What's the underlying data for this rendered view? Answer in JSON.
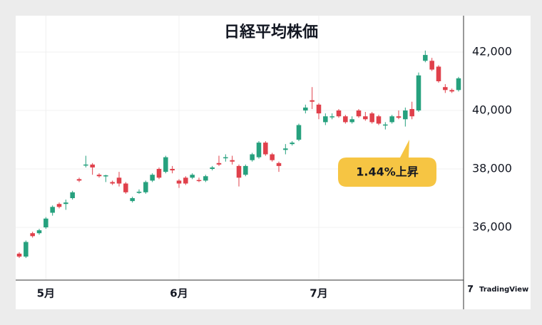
{
  "chart_data": {
    "type": "candlestick",
    "title": "日経平均株価",
    "annotation": "1.44%上昇",
    "watermark": "TradingView",
    "up_color": "#26a17e",
    "down_color": "#e0404b",
    "grid": true,
    "categories": [
      null,
      null,
      null,
      null,
      "5月",
      null,
      null,
      null,
      null,
      null,
      null,
      null,
      null,
      null,
      null,
      null,
      null,
      null,
      null,
      null,
      null,
      null,
      null,
      null,
      "6月",
      null,
      null,
      null,
      null,
      null,
      null,
      null,
      null,
      null,
      null,
      null,
      null,
      null,
      null,
      null,
      null,
      null,
      null,
      null,
      null,
      "7月",
      null,
      null,
      null,
      null,
      null,
      null,
      null,
      null,
      null,
      null,
      null,
      null,
      null,
      null,
      null,
      null,
      null,
      null,
      null,
      null,
      null
    ],
    "open": [
      35100,
      35000,
      35800,
      35800,
      36000,
      36500,
      36800,
      36800,
      37000,
      37650,
      38120,
      38150,
      37800,
      37750,
      37550,
      37700,
      37500,
      36900,
      37180,
      37200,
      37600,
      38000,
      37900,
      38000,
      37600,
      37700,
      37700,
      37620,
      37600,
      38000,
      38200,
      38380,
      38300,
      38100,
      37800,
      38300,
      38400,
      38900,
      38500,
      38200,
      38650,
      38850,
      39000,
      40000,
      40350,
      40200,
      39600,
      39780,
      40000,
      39800,
      39600,
      40000,
      39800,
      39900,
      39800,
      39500,
      39600,
      39800,
      39700,
      40050,
      40000,
      41700,
      41700,
      41500,
      40800,
      40700,
      40700
    ],
    "high": [
      35150,
      35550,
      35850,
      35950,
      36350,
      36750,
      36850,
      36950,
      37250,
      37700,
      38450,
      38200,
      37850,
      37800,
      37600,
      37900,
      37550,
      37050,
      37300,
      37600,
      37850,
      38050,
      38450,
      38100,
      37650,
      37750,
      37850,
      37700,
      37800,
      38100,
      38450,
      38500,
      38450,
      38150,
      38150,
      38550,
      38950,
      38950,
      38550,
      38250,
      38850,
      38950,
      39550,
      40200,
      40800,
      40250,
      39900,
      39900,
      40050,
      39850,
      39800,
      40050,
      39950,
      39950,
      39850,
      39600,
      39850,
      40000,
      40100,
      40300,
      41300,
      42050,
      41800,
      41550,
      40900,
      40750,
      41150
    ],
    "low": [
      34950,
      34950,
      35650,
      35750,
      35950,
      36400,
      36650,
      36600,
      36950,
      37550,
      38050,
      37800,
      37700,
      37550,
      37450,
      37400,
      37150,
      36850,
      37150,
      37150,
      37550,
      37650,
      37850,
      37850,
      37350,
      37450,
      37650,
      37550,
      37550,
      37950,
      38100,
      38250,
      38150,
      37400,
      37750,
      38250,
      38350,
      38450,
      38250,
      37900,
      38500,
      38800,
      38950,
      39900,
      40050,
      39700,
      39500,
      39700,
      39750,
      39550,
      39550,
      39750,
      39650,
      39550,
      39500,
      39350,
      39550,
      39700,
      39450,
      39700,
      39950,
      41650,
      41350,
      40950,
      40600,
      40600,
      40650
    ],
    "close": [
      35000,
      35500,
      35700,
      35900,
      36300,
      36700,
      36700,
      36850,
      37200,
      37600,
      38150,
      38050,
      37750,
      37780,
      37500,
      37500,
      37200,
      37000,
      37220,
      37550,
      37800,
      37700,
      38400,
      37950,
      37500,
      37500,
      37800,
      37600,
      37750,
      38050,
      38150,
      38400,
      38250,
      37700,
      38100,
      38500,
      38900,
      38500,
      38300,
      38100,
      38700,
      38900,
      39500,
      40100,
      40300,
      39900,
      39800,
      39800,
      39800,
      39600,
      39700,
      39800,
      39700,
      39600,
      39550,
      39520,
      39800,
      39750,
      40000,
      39800,
      41200,
      41900,
      41400,
      41000,
      40700,
      40650,
      41100
    ],
    "ylim": [
      34195,
      43244
    ],
    "yticks": [
      {
        "value": 36000,
        "label": "36,000"
      },
      {
        "value": 38000,
        "label": "38,000"
      },
      {
        "value": 40000,
        "label": "40,000"
      },
      {
        "value": 42000,
        "label": "42,000"
      }
    ]
  }
}
